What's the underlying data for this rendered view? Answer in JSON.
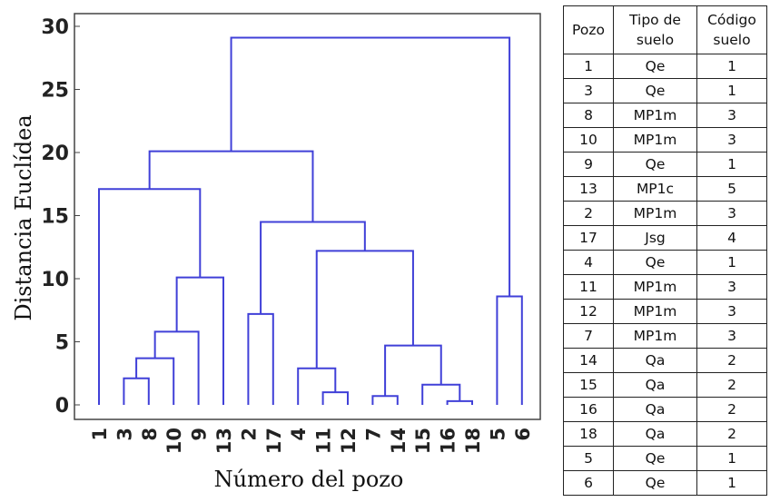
{
  "chart_data": {
    "type": "dendrogram",
    "xlabel": "Número del pozo",
    "ylabel": "Distancia Euclídea",
    "ylim": [
      0,
      30
    ],
    "yticks": [
      0,
      5,
      10,
      15,
      20,
      25,
      30
    ],
    "leaf_order": [
      "1",
      "3",
      "8",
      "10",
      "9",
      "13",
      "2",
      "17",
      "4",
      "11",
      "12",
      "7",
      "14",
      "15",
      "16",
      "18",
      "5",
      "6"
    ],
    "merges": [
      {
        "a": "16",
        "b": "18",
        "height": 0.3
      },
      {
        "a": "7",
        "b": "14",
        "height": 0.7
      },
      {
        "a": "11",
        "b": "12",
        "height": 1.0
      },
      {
        "a": "15",
        "b": "16+18",
        "height": 1.6
      },
      {
        "a": "3",
        "b": "8",
        "height": 2.1
      },
      {
        "a": "4",
        "b": "11+12",
        "height": 2.9
      },
      {
        "a": "3+8",
        "b": "10",
        "height": 3.7
      },
      {
        "a": "7+14",
        "b": "15+16+18",
        "height": 4.7
      },
      {
        "a": "3+8+10",
        "b": "9",
        "height": 5.8
      },
      {
        "a": "2",
        "b": "17",
        "height": 7.2
      },
      {
        "a": "5",
        "b": "6",
        "height": 8.6
      },
      {
        "a": "3+8+10+9",
        "b": "13",
        "height": 10.1
      },
      {
        "a": "4+11+12",
        "b": "7+14+15+16+18",
        "height": 12.2
      },
      {
        "a": "2+17",
        "b": "4+11+12+7+14+15+16+18",
        "height": 14.5
      },
      {
        "a": "1",
        "b": "3+8+10+9+13",
        "height": 17.1
      },
      {
        "a": "1+3+8+10+9+13",
        "b": "2+17+4+11+12+7+14+15+16+18",
        "height": 20.1
      },
      {
        "a": "1+3+8+10+9+13+2+17+4+11+12+7+14+15+16+18",
        "b": "5+6",
        "height": 29.1
      }
    ],
    "colors": {
      "links": "#4040d8"
    }
  },
  "table": {
    "headers": [
      "Pozo",
      "Tipo de suelo",
      "Código suelo"
    ],
    "rows": [
      [
        "1",
        "Qe",
        "1"
      ],
      [
        "3",
        "Qe",
        "1"
      ],
      [
        "8",
        "MP1m",
        "3"
      ],
      [
        "10",
        "MP1m",
        "3"
      ],
      [
        "9",
        "Qe",
        "1"
      ],
      [
        "13",
        "MP1c",
        "5"
      ],
      [
        "2",
        "MP1m",
        "3"
      ],
      [
        "17",
        "Jsg",
        "4"
      ],
      [
        "4",
        "Qe",
        "1"
      ],
      [
        "11",
        "MP1m",
        "3"
      ],
      [
        "12",
        "MP1m",
        "3"
      ],
      [
        "7",
        "MP1m",
        "3"
      ],
      [
        "14",
        "Qa",
        "2"
      ],
      [
        "15",
        "Qa",
        "2"
      ],
      [
        "16",
        "Qa",
        "2"
      ],
      [
        "18",
        "Qa",
        "2"
      ],
      [
        "5",
        "Qe",
        "1"
      ],
      [
        "6",
        "Qe",
        "1"
      ]
    ]
  }
}
